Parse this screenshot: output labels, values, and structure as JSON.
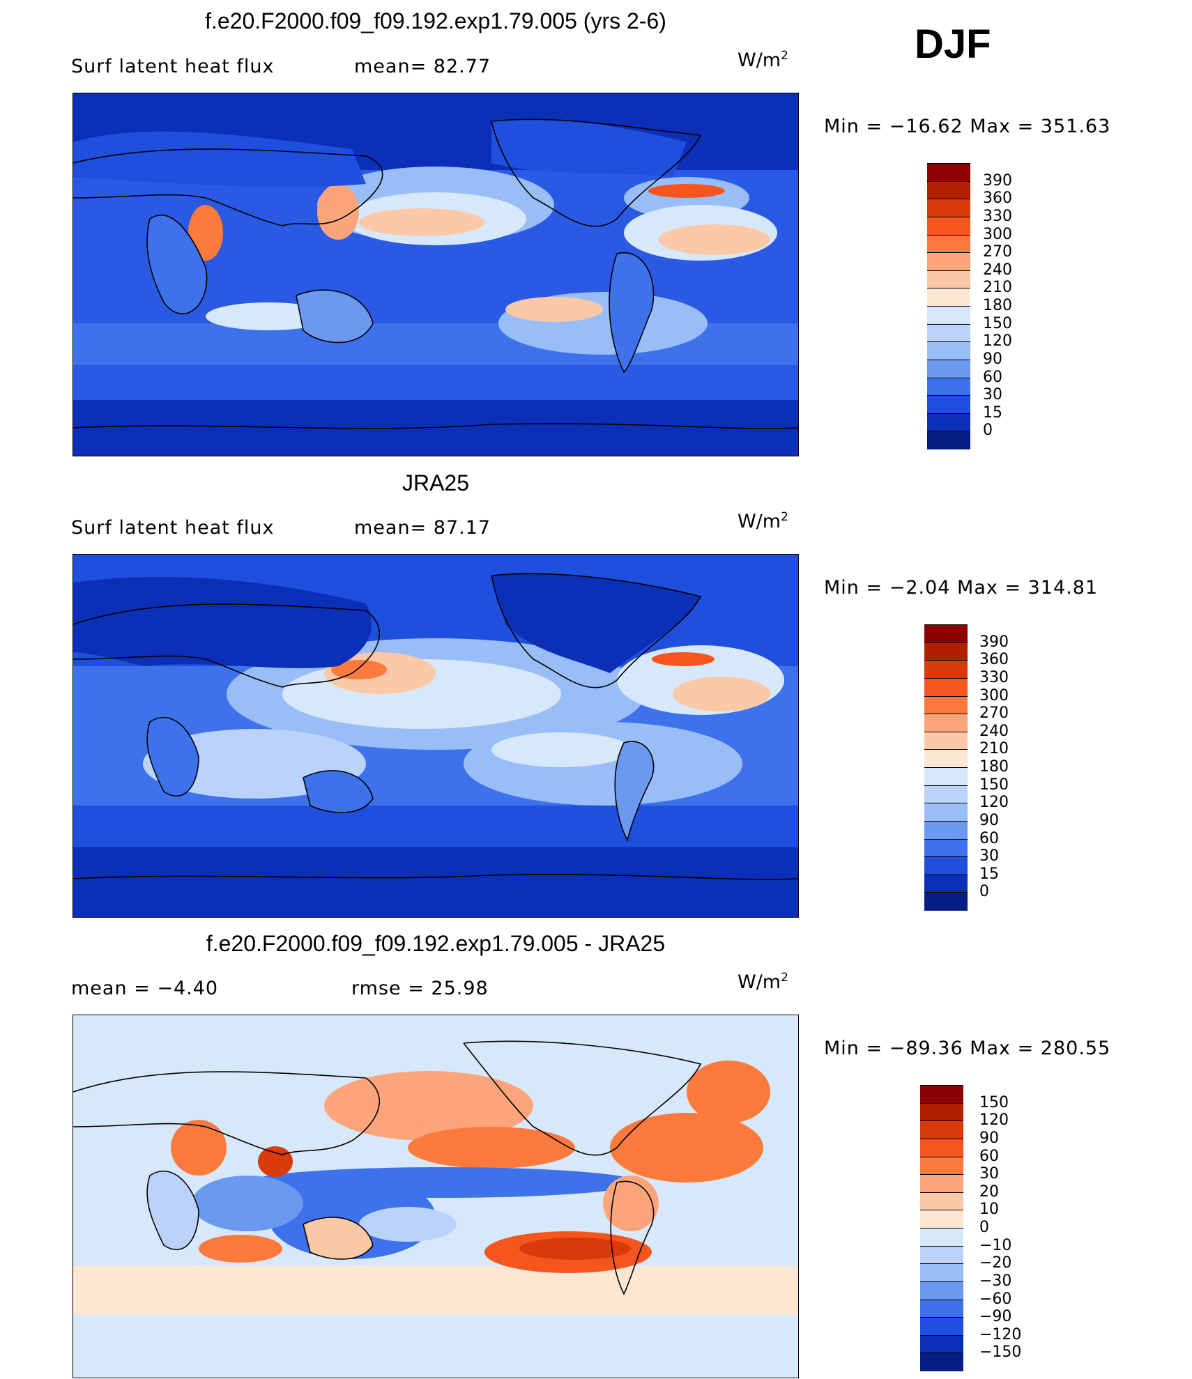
{
  "season": "DJF",
  "panels": [
    {
      "title": "f.e20.F2000.f09_f09.192.exp1.79.005 (yrs 2-6)",
      "left_label": "Surf  latent  heat  flux",
      "stat_label": "mean=   82.77",
      "units_base": "W/m",
      "units_exp": "2",
      "minmax": "Min  =  −16.62  Max  =  351.63",
      "colorbar": {
        "colors": [
          "#8b0000",
          "#b22000",
          "#d83a0a",
          "#f5561e",
          "#fb7a3c",
          "#fca47a",
          "#fbc8a8",
          "#fde6d2",
          "#d8e8fb",
          "#bbd3fa",
          "#98bdf7",
          "#6c99f0",
          "#3d72eb",
          "#1f4fdd",
          "#0c2fb8",
          "#041e86"
        ],
        "ticks": [
          "390",
          "360",
          "330",
          "300",
          "270",
          "240",
          "210",
          "180",
          "150",
          "120",
          "90",
          "60",
          "30",
          "15",
          "0"
        ]
      }
    },
    {
      "title": "JRA25",
      "left_label": "Surf  latent  heat  flux",
      "stat_label": "mean=   87.17",
      "units_base": "W/m",
      "units_exp": "2",
      "minmax": "Min  =    −2.04  Max  =  314.81",
      "colorbar": {
        "colors": [
          "#8b0000",
          "#b22000",
          "#d83a0a",
          "#f5561e",
          "#fb7a3c",
          "#fca47a",
          "#fbc8a8",
          "#fde6d2",
          "#d8e8fb",
          "#bbd3fa",
          "#98bdf7",
          "#6c99f0",
          "#3d72eb",
          "#1f4fdd",
          "#0c2fb8",
          "#041e86"
        ],
        "ticks": [
          "390",
          "360",
          "330",
          "300",
          "270",
          "240",
          "210",
          "180",
          "150",
          "120",
          "90",
          "60",
          "30",
          "15",
          "0"
        ]
      }
    },
    {
      "title": "f.e20.F2000.f09_f09.192.exp1.79.005 - JRA25",
      "left_label": "mean  =    −4.40",
      "stat_label": "rmse  =    25.98",
      "units_base": "W/m",
      "units_exp": "2",
      "minmax": "Min  =  −89.36  Max  =  280.55",
      "colorbar": {
        "colors": [
          "#8b0000",
          "#b22000",
          "#d83a0a",
          "#f5561e",
          "#fb7a3c",
          "#fca47a",
          "#fbc8a8",
          "#fde6d2",
          "#d8e8fb",
          "#bbd3fa",
          "#98bdf7",
          "#6c99f0",
          "#3d72eb",
          "#1f4fdd",
          "#0c2fb8",
          "#041e86"
        ],
        "ticks": [
          "150",
          "120",
          "90",
          "60",
          "30",
          "20",
          "10",
          "0",
          "−10",
          "−20",
          "−30",
          "−60",
          "−90",
          "−120",
          "−150"
        ]
      }
    }
  ]
}
